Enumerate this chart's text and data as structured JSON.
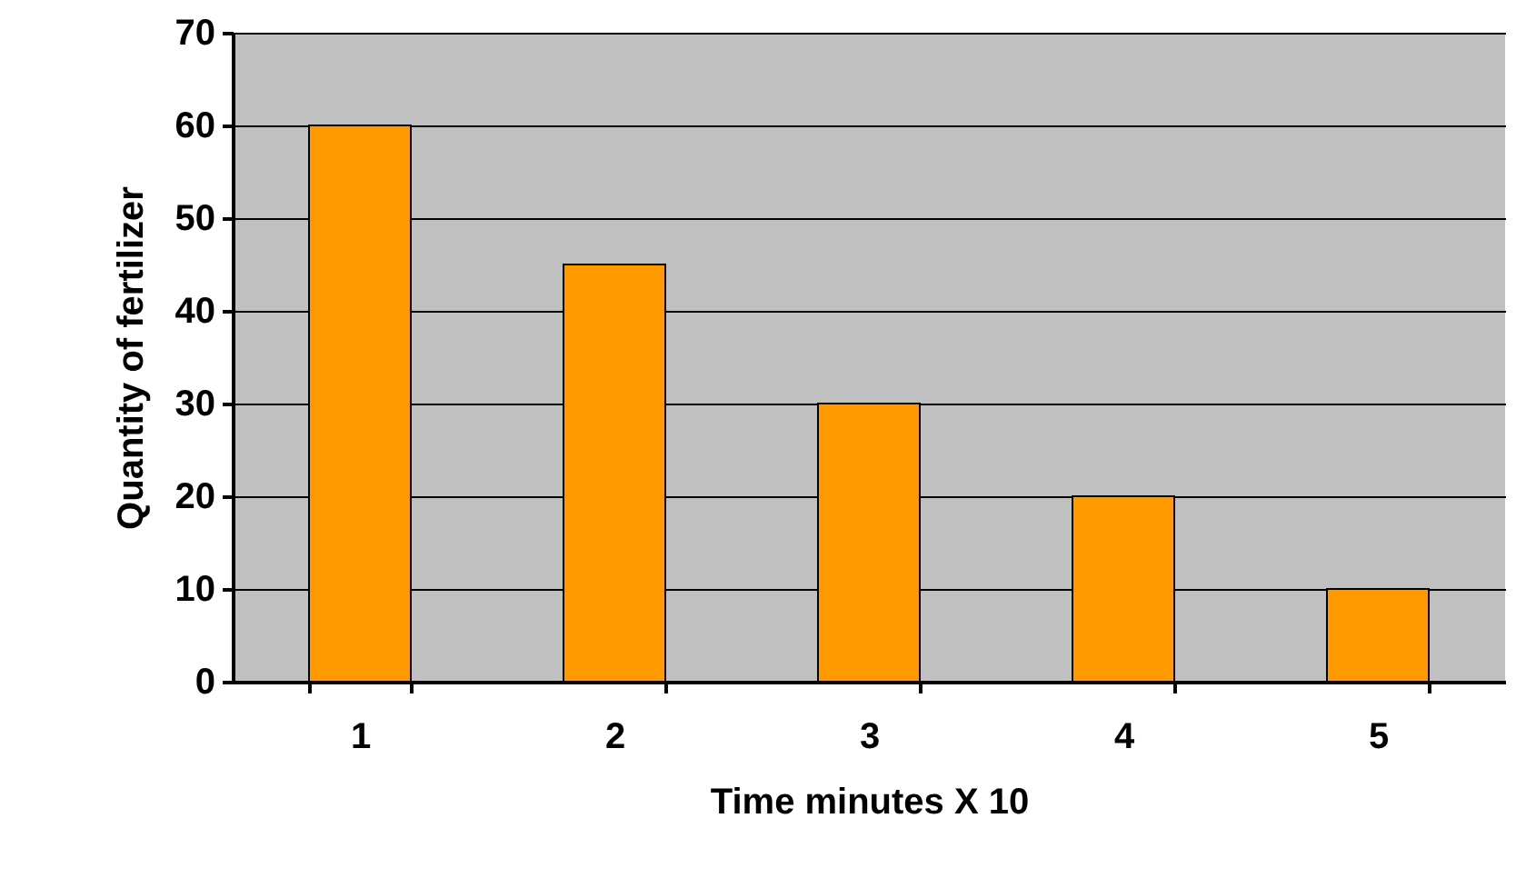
{
  "chart_data": {
    "type": "bar",
    "xlabel": "Time minutes X 10",
    "ylabel": "Quantity of fertilizer",
    "categories": [
      "1",
      "2",
      "3",
      "4",
      "5"
    ],
    "values": [
      60,
      45,
      30,
      20,
      10
    ],
    "color": "#ff9900",
    "ylim": [
      0,
      70
    ],
    "yticks": [
      0,
      10,
      20,
      30,
      40,
      50,
      60,
      70
    ],
    "grid": "y"
  }
}
